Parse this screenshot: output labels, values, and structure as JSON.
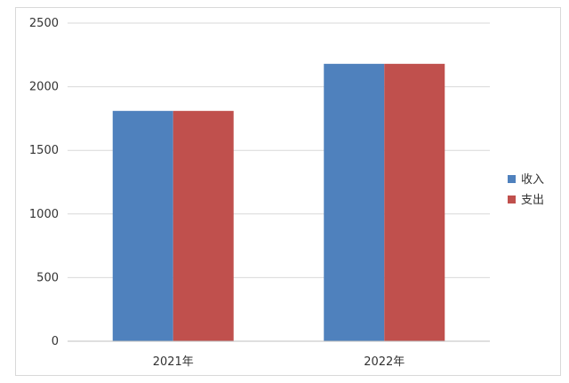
{
  "chart_data": {
    "type": "bar",
    "categories": [
      "2021年",
      "2022年"
    ],
    "series": [
      {
        "name": "收入",
        "values": [
          1810,
          2180
        ]
      },
      {
        "name": "支出",
        "values": [
          1810,
          2180
        ]
      }
    ],
    "ylim": [
      0,
      2500
    ],
    "yticks": [
      0,
      500,
      1000,
      1500,
      2000,
      2500
    ],
    "grid": true,
    "legend_position": "right"
  },
  "colors": {
    "series": [
      "#4f81bd",
      "#c0504d"
    ],
    "grid": "#d9d9d9"
  }
}
